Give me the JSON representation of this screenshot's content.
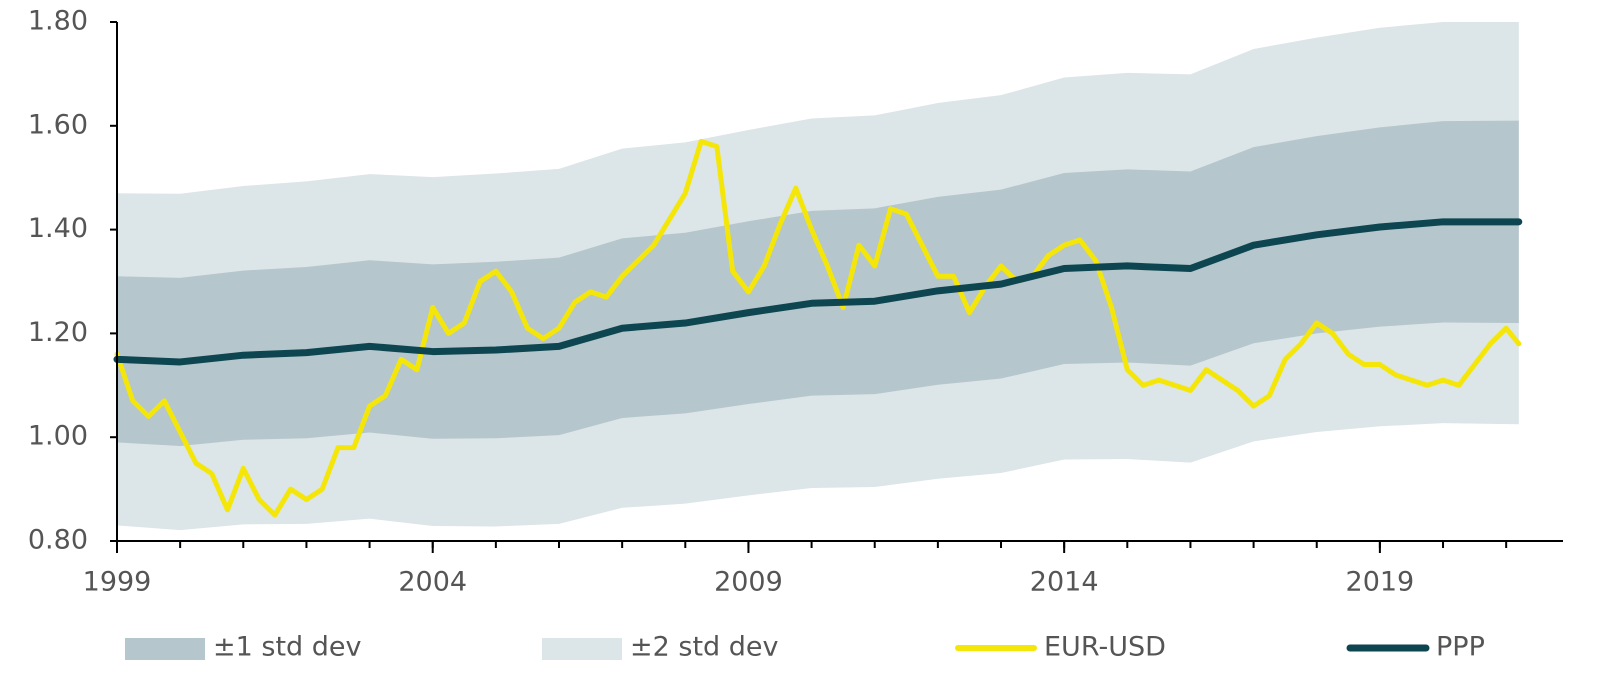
{
  "chart_data": {
    "type": "line",
    "xlim": [
      1999,
      2021.9
    ],
    "xticks": [
      1999,
      2004,
      2009,
      2014,
      2019
    ],
    "xminorticks": [
      1999,
      2000,
      2001,
      2002,
      2003,
      2004,
      2005,
      2006,
      2007,
      2008,
      2009,
      2010,
      2011,
      2012,
      2013,
      2014,
      2015,
      2016,
      2017,
      2018,
      2019,
      2020,
      2021
    ],
    "ylim": [
      0.8,
      1.8
    ],
    "yticks": [
      {
        "value": 0.8,
        "label": "0.80"
      },
      {
        "value": 1.0,
        "label": "1.00"
      },
      {
        "value": 1.2,
        "label": "1.20"
      },
      {
        "value": 1.4,
        "label": "1.40"
      },
      {
        "value": 1.6,
        "label": "1.60"
      },
      {
        "value": 1.8,
        "label": "1.80"
      }
    ],
    "x": [
      1999,
      2000,
      2001,
      2002,
      2003,
      2004,
      2005,
      2006,
      2007,
      2008,
      2009,
      2010,
      2011,
      2012,
      2013,
      2014,
      2015,
      2016,
      2017,
      2018,
      2019,
      2020,
      2021.2
    ],
    "legend": "bottom",
    "series": [
      {
        "name": "±2 std dev",
        "color": "#dce5e7",
        "kind": "band",
        "upper": [
          1.47,
          1.469,
          1.484,
          1.493,
          1.507,
          1.501,
          1.508,
          1.517,
          1.556,
          1.568,
          1.592,
          1.614,
          1.62,
          1.644,
          1.659,
          1.693,
          1.702,
          1.699,
          1.748,
          1.77,
          1.789,
          1.8,
          1.8
        ],
        "lower": [
          0.83,
          0.821,
          0.832,
          0.833,
          0.843,
          0.829,
          0.828,
          0.833,
          0.864,
          0.872,
          0.888,
          0.902,
          0.904,
          0.92,
          0.931,
          0.957,
          0.958,
          0.951,
          0.992,
          1.01,
          1.021,
          1.027,
          1.025
        ]
      },
      {
        "name": "±1 std dev",
        "color": "#b5c6cc",
        "kind": "band",
        "upper": [
          1.31,
          1.307,
          1.321,
          1.328,
          1.341,
          1.333,
          1.338,
          1.346,
          1.383,
          1.394,
          1.416,
          1.436,
          1.441,
          1.463,
          1.477,
          1.509,
          1.516,
          1.512,
          1.559,
          1.58,
          1.597,
          1.609,
          1.61
        ],
        "lower": [
          0.99,
          0.983,
          0.995,
          0.998,
          1.009,
          0.997,
          0.998,
          1.004,
          1.037,
          1.046,
          1.064,
          1.08,
          1.083,
          1.101,
          1.113,
          1.141,
          1.144,
          1.138,
          1.181,
          1.2,
          1.213,
          1.221,
          1.22
        ]
      },
      {
        "name": "EUR-USD",
        "color": "#f5e60a",
        "kind": "line",
        "x": [
          1999.0,
          1999.25,
          1999.5,
          1999.75,
          2000.0,
          2000.25,
          2000.5,
          2000.75,
          2001.0,
          2001.25,
          2001.5,
          2001.75,
          2002.0,
          2002.25,
          2002.5,
          2002.75,
          2003.0,
          2003.25,
          2003.5,
          2003.75,
          2004.0,
          2004.25,
          2004.5,
          2004.75,
          2005.0,
          2005.25,
          2005.5,
          2005.75,
          2006.0,
          2006.25,
          2006.5,
          2006.75,
          2007.0,
          2007.25,
          2007.5,
          2007.75,
          2008.0,
          2008.25,
          2008.5,
          2008.75,
          2009.0,
          2009.25,
          2009.5,
          2009.75,
          2010.0,
          2010.25,
          2010.5,
          2010.75,
          2011.0,
          2011.25,
          2011.5,
          2011.75,
          2012.0,
          2012.25,
          2012.5,
          2012.75,
          2013.0,
          2013.25,
          2013.5,
          2013.75,
          2014.0,
          2014.25,
          2014.5,
          2014.75,
          2015.0,
          2015.25,
          2015.5,
          2015.75,
          2016.0,
          2016.25,
          2016.5,
          2016.75,
          2017.0,
          2017.25,
          2017.5,
          2017.75,
          2018.0,
          2018.25,
          2018.5,
          2018.75,
          2019.0,
          2019.25,
          2019.5,
          2019.75,
          2020.0,
          2020.25,
          2020.5,
          2020.75,
          2021.0,
          2021.2
        ],
        "values": [
          1.16,
          1.07,
          1.04,
          1.07,
          1.01,
          0.95,
          0.93,
          0.86,
          0.94,
          0.88,
          0.85,
          0.9,
          0.88,
          0.9,
          0.98,
          0.98,
          1.06,
          1.08,
          1.15,
          1.13,
          1.25,
          1.2,
          1.22,
          1.3,
          1.32,
          1.28,
          1.21,
          1.19,
          1.21,
          1.26,
          1.28,
          1.27,
          1.31,
          1.34,
          1.37,
          1.42,
          1.47,
          1.57,
          1.56,
          1.32,
          1.28,
          1.33,
          1.41,
          1.48,
          1.4,
          1.33,
          1.25,
          1.37,
          1.33,
          1.44,
          1.43,
          1.37,
          1.31,
          1.31,
          1.24,
          1.29,
          1.33,
          1.3,
          1.31,
          1.35,
          1.37,
          1.38,
          1.34,
          1.25,
          1.13,
          1.1,
          1.11,
          1.1,
          1.09,
          1.13,
          1.11,
          1.09,
          1.06,
          1.08,
          1.15,
          1.18,
          1.22,
          1.2,
          1.16,
          1.14,
          1.14,
          1.12,
          1.11,
          1.1,
          1.11,
          1.1,
          1.14,
          1.18,
          1.21,
          1.18
        ]
      },
      {
        "name": "PPP",
        "color": "#0d4650",
        "kind": "line",
        "values": [
          1.15,
          1.145,
          1.158,
          1.163,
          1.175,
          1.165,
          1.168,
          1.175,
          1.21,
          1.22,
          1.24,
          1.258,
          1.262,
          1.282,
          1.295,
          1.325,
          1.33,
          1.325,
          1.37,
          1.39,
          1.405,
          1.415,
          1.415
        ]
      }
    ]
  }
}
